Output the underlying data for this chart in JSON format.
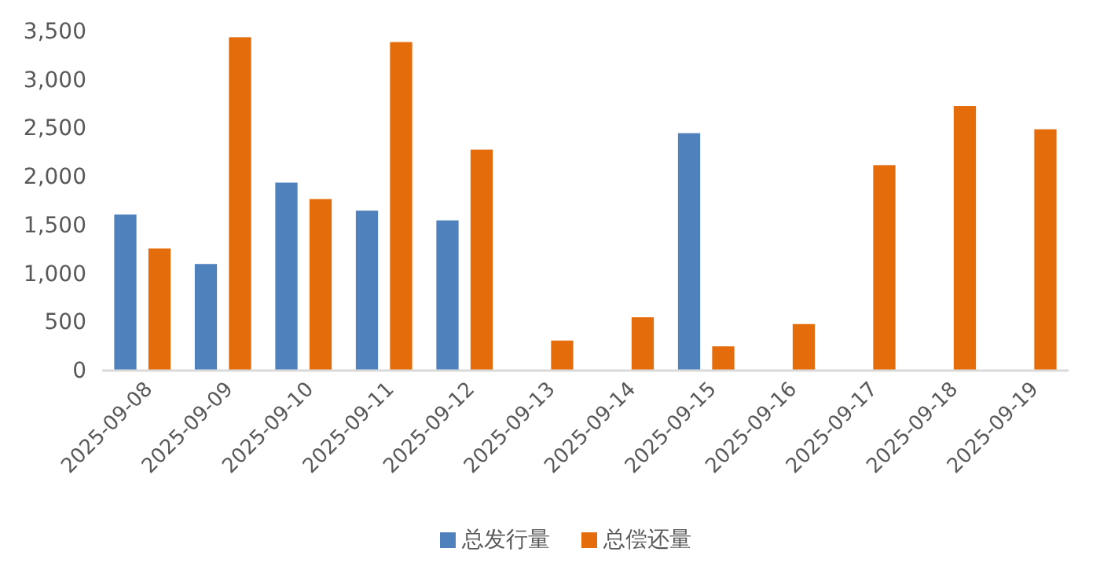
{
  "chart_data": {
    "type": "bar",
    "categories": [
      "2025-09-08",
      "2025-09-09",
      "2025-09-10",
      "2025-09-11",
      "2025-09-12",
      "2025-09-13",
      "2025-09-14",
      "2025-09-15",
      "2025-09-16",
      "2025-09-17",
      "2025-09-18",
      "2025-09-19"
    ],
    "series": [
      {
        "name": "总发行量",
        "color": "#4f81bd",
        "values": [
          1610,
          1100,
          1940,
          1650,
          1550,
          null,
          null,
          2450,
          null,
          null,
          null,
          null
        ]
      },
      {
        "name": "总偿还量",
        "color": "#e46c0a",
        "values": [
          1260,
          3440,
          1770,
          3390,
          2280,
          310,
          550,
          250,
          480,
          2120,
          2730,
          2490
        ]
      }
    ],
    "ylim": [
      0,
      3500
    ],
    "yticks": [
      {
        "value": 0,
        "label": "0"
      },
      {
        "value": 500,
        "label": "500"
      },
      {
        "value": 1000,
        "label": "1,000"
      },
      {
        "value": 1500,
        "label": "1,500"
      },
      {
        "value": 2000,
        "label": "2,000"
      },
      {
        "value": 2500,
        "label": "2,500"
      },
      {
        "value": 3000,
        "label": "3,000"
      },
      {
        "value": 3500,
        "label": "3,500"
      }
    ],
    "grid": false,
    "legend": "bottom"
  }
}
